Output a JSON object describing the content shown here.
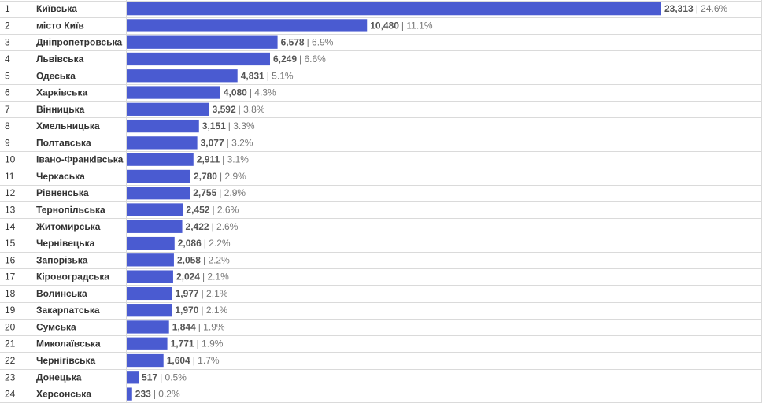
{
  "chart_data": {
    "type": "bar",
    "orientation": "horizontal",
    "title": "",
    "xlabel": "",
    "ylabel": "",
    "grid": true,
    "bar_color": "#4a5bd1",
    "rows": [
      {
        "rank": "1",
        "name": "Київська",
        "value": 23313,
        "value_label": "23,313",
        "pct_label": "| 24.6%"
      },
      {
        "rank": "2",
        "name": "місто Київ",
        "value": 10480,
        "value_label": "10,480",
        "pct_label": "| 11.1%"
      },
      {
        "rank": "3",
        "name": "Дніпропетровська",
        "value": 6578,
        "value_label": "6,578",
        "pct_label": "| 6.9%"
      },
      {
        "rank": "4",
        "name": "Львівська",
        "value": 6249,
        "value_label": "6,249",
        "pct_label": "| 6.6%"
      },
      {
        "rank": "5",
        "name": "Одеська",
        "value": 4831,
        "value_label": "4,831",
        "pct_label": "| 5.1%"
      },
      {
        "rank": "6",
        "name": "Харківська",
        "value": 4080,
        "value_label": "4,080",
        "pct_label": "| 4.3%"
      },
      {
        "rank": "7",
        "name": "Вінницька",
        "value": 3592,
        "value_label": "3,592",
        "pct_label": "| 3.8%"
      },
      {
        "rank": "8",
        "name": "Хмельницька",
        "value": 3151,
        "value_label": "3,151",
        "pct_label": "| 3.3%"
      },
      {
        "rank": "9",
        "name": "Полтавська",
        "value": 3077,
        "value_label": "3,077",
        "pct_label": "| 3.2%"
      },
      {
        "rank": "10",
        "name": "Івано-Франківська",
        "value": 2911,
        "value_label": "2,911",
        "pct_label": "| 3.1%"
      },
      {
        "rank": "11",
        "name": "Черкаська",
        "value": 2780,
        "value_label": "2,780",
        "pct_label": "| 2.9%"
      },
      {
        "rank": "12",
        "name": "Рівненська",
        "value": 2755,
        "value_label": "2,755",
        "pct_label": "| 2.9%"
      },
      {
        "rank": "13",
        "name": "Тернопільська",
        "value": 2452,
        "value_label": "2,452",
        "pct_label": "| 2.6%"
      },
      {
        "rank": "14",
        "name": "Житомирська",
        "value": 2422,
        "value_label": "2,422",
        "pct_label": "| 2.6%"
      },
      {
        "rank": "15",
        "name": "Чернівецька",
        "value": 2086,
        "value_label": "2,086",
        "pct_label": "| 2.2%"
      },
      {
        "rank": "16",
        "name": "Запорізька",
        "value": 2058,
        "value_label": "2,058",
        "pct_label": "| 2.2%"
      },
      {
        "rank": "17",
        "name": "Кіровоградська",
        "value": 2024,
        "value_label": "2,024",
        "pct_label": "| 2.1%"
      },
      {
        "rank": "18",
        "name": "Волинська",
        "value": 1977,
        "value_label": "1,977",
        "pct_label": "| 2.1%"
      },
      {
        "rank": "19",
        "name": "Закарпатська",
        "value": 1970,
        "value_label": "1,970",
        "pct_label": "| 2.1%"
      },
      {
        "rank": "20",
        "name": "Сумська",
        "value": 1844,
        "value_label": "1,844",
        "pct_label": "| 1.9%"
      },
      {
        "rank": "21",
        "name": "Миколаївська",
        "value": 1771,
        "value_label": "1,771",
        "pct_label": "| 1.9%"
      },
      {
        "rank": "22",
        "name": "Чернігівська",
        "value": 1604,
        "value_label": "1,604",
        "pct_label": "| 1.7%"
      },
      {
        "rank": "23",
        "name": "Донецька",
        "value": 517,
        "value_label": "517",
        "pct_label": "| 0.5%"
      },
      {
        "rank": "24",
        "name": "Херсонська",
        "value": 233,
        "value_label": "233",
        "pct_label": "| 0.2%"
      }
    ]
  }
}
